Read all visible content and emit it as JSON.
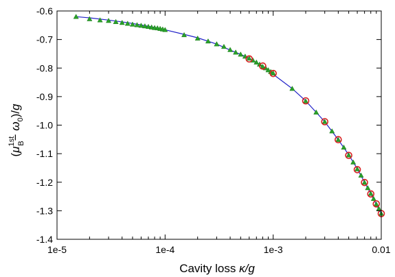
{
  "chart_data": {
    "type": "scatter",
    "xscale": "log",
    "xlim": [
      1e-05,
      0.01
    ],
    "ylim": [
      -1.4,
      -0.6
    ],
    "xticks": [
      {
        "value": 1e-05,
        "label": "1e-5"
      },
      {
        "value": 0.0001,
        "label": "1e-4"
      },
      {
        "value": 0.001,
        "label": "1e-3"
      },
      {
        "value": 0.01,
        "label": "0.01"
      }
    ],
    "yticks": [
      {
        "value": -0.6,
        "label": "-0.6"
      },
      {
        "value": -0.7,
        "label": "-0.7"
      },
      {
        "value": -0.8,
        "label": "-0.8"
      },
      {
        "value": -0.9,
        "label": "-0.9"
      },
      {
        "value": -1.0,
        "label": "-1.0"
      },
      {
        "value": -1.1,
        "label": "-1.1"
      },
      {
        "value": -1.2,
        "label": "-1.2"
      },
      {
        "value": -1.3,
        "label": "-1.3"
      },
      {
        "value": -1.4,
        "label": "-1.4"
      }
    ],
    "xlabel": "Cavity loss  κ/g",
    "ylabel": "(μB1st− ω0)/g",
    "grid": false,
    "series": [
      {
        "marker": "line",
        "color": "#1f1fc8",
        "points": [
          [
            1.5e-05,
            -0.62
          ],
          [
            2e-05,
            -0.624
          ],
          [
            3e-05,
            -0.632
          ],
          [
            4.5e-05,
            -0.641
          ],
          [
            6e-05,
            -0.649
          ],
          [
            8e-05,
            -0.658
          ],
          [
            0.0001,
            -0.666
          ],
          [
            0.00015,
            -0.682
          ],
          [
            0.0002,
            -0.694
          ],
          [
            0.0003,
            -0.716
          ],
          [
            0.0004,
            -0.737
          ],
          [
            0.0005,
            -0.752
          ],
          [
            0.0006,
            -0.766
          ],
          [
            0.0008,
            -0.794
          ],
          [
            0.001,
            -0.822
          ],
          [
            0.0015,
            -0.872
          ],
          [
            0.002,
            -0.915
          ],
          [
            0.003,
            -0.988
          ],
          [
            0.004,
            -1.051
          ],
          [
            0.005,
            -1.104
          ],
          [
            0.006,
            -1.153
          ],
          [
            0.007,
            -1.2
          ],
          [
            0.008,
            -1.24
          ],
          [
            0.009,
            -1.278
          ],
          [
            0.01,
            -1.31
          ]
        ]
      },
      {
        "marker": "triangle",
        "color": "#2aa02a",
        "points": [
          [
            1.5e-05,
            -0.62
          ],
          [
            2e-05,
            -0.628
          ],
          [
            2.5e-05,
            -0.632
          ],
          [
            3e-05,
            -0.634
          ],
          [
            3.5e-05,
            -0.638
          ],
          [
            4e-05,
            -0.641
          ],
          [
            4.5e-05,
            -0.644
          ],
          [
            5e-05,
            -0.647
          ],
          [
            5.5e-05,
            -0.649
          ],
          [
            6e-05,
            -0.651
          ],
          [
            6.5e-05,
            -0.653
          ],
          [
            7e-05,
            -0.655
          ],
          [
            7.5e-05,
            -0.657
          ],
          [
            8e-05,
            -0.659
          ],
          [
            8.5e-05,
            -0.66
          ],
          [
            9e-05,
            -0.662
          ],
          [
            9.5e-05,
            -0.664
          ],
          [
            0.0001,
            -0.666
          ],
          [
            0.00015,
            -0.684
          ],
          [
            0.0002,
            -0.696
          ],
          [
            0.00025,
            -0.706
          ],
          [
            0.0003,
            -0.716
          ],
          [
            0.00035,
            -0.725
          ],
          [
            0.0004,
            -0.736
          ],
          [
            0.00045,
            -0.745
          ],
          [
            0.0005,
            -0.752
          ],
          [
            0.00055,
            -0.759
          ],
          [
            0.0006,
            -0.766
          ],
          [
            0.00065,
            -0.773
          ],
          [
            0.0007,
            -0.78
          ],
          [
            0.00075,
            -0.787
          ],
          [
            0.0008,
            -0.795
          ],
          [
            0.00085,
            -0.8
          ],
          [
            0.0009,
            -0.807
          ],
          [
            0.00095,
            -0.813
          ],
          [
            0.001,
            -0.818
          ],
          [
            0.0015,
            -0.872
          ],
          [
            0.002,
            -0.916
          ],
          [
            0.0025,
            -0.955
          ],
          [
            0.003,
            -0.988
          ],
          [
            0.0035,
            -1.021
          ],
          [
            0.004,
            -1.051
          ],
          [
            0.0045,
            -1.078
          ],
          [
            0.005,
            -1.105
          ],
          [
            0.0055,
            -1.13
          ],
          [
            0.006,
            -1.154
          ],
          [
            0.0065,
            -1.176
          ],
          [
            0.007,
            -1.201
          ],
          [
            0.0075,
            -1.22
          ],
          [
            0.008,
            -1.24
          ],
          [
            0.0085,
            -1.258
          ],
          [
            0.009,
            -1.277
          ],
          [
            0.0095,
            -1.293
          ],
          [
            0.01,
            -1.31
          ]
        ]
      },
      {
        "marker": "circle",
        "color": "#d62020",
        "points": [
          [
            0.0006,
            -0.768
          ],
          [
            0.0008,
            -0.793
          ],
          [
            0.001,
            -0.819
          ],
          [
            0.002,
            -0.915
          ],
          [
            0.003,
            -0.988
          ],
          [
            0.004,
            -1.051
          ],
          [
            0.005,
            -1.106
          ],
          [
            0.006,
            -1.156
          ],
          [
            0.007,
            -1.201
          ],
          [
            0.008,
            -1.241
          ],
          [
            0.009,
            -1.276
          ],
          [
            0.01,
            -1.31
          ]
        ]
      }
    ]
  }
}
